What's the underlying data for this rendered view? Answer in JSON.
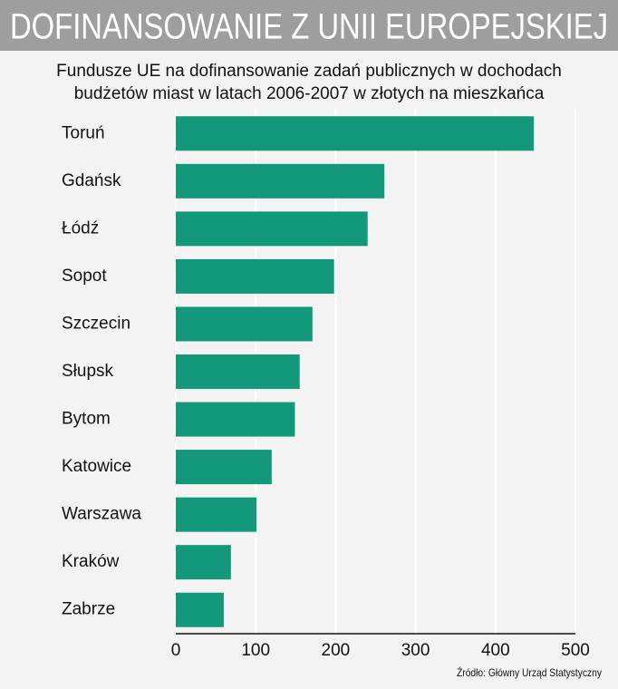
{
  "chart_data": {
    "type": "barh",
    "title": "DOFINANSOWANIE Z UNII EUROPEJSKIEJ",
    "subtitle": "Fundusze UE na dofinansowanie zadań publicznych w dochodach budżetów miast w latach 2006-2007 w złotych na mieszkańca",
    "categories": [
      "Toruń",
      "Gdańsk",
      "Łódź",
      "Sopot",
      "Szczecin",
      "Słupsk",
      "Bytom",
      "Katowice",
      "Warszawa",
      "Kraków",
      "Zabrze"
    ],
    "values": [
      448,
      261,
      240,
      198,
      171,
      155,
      149,
      120,
      101,
      69,
      60
    ],
    "color": "#13987a",
    "xlim": [
      0,
      500
    ],
    "xticks": [
      0,
      100,
      200,
      300,
      400,
      500
    ],
    "grid": true,
    "source": "Źródło: Główny Urząd Statystyczny"
  }
}
